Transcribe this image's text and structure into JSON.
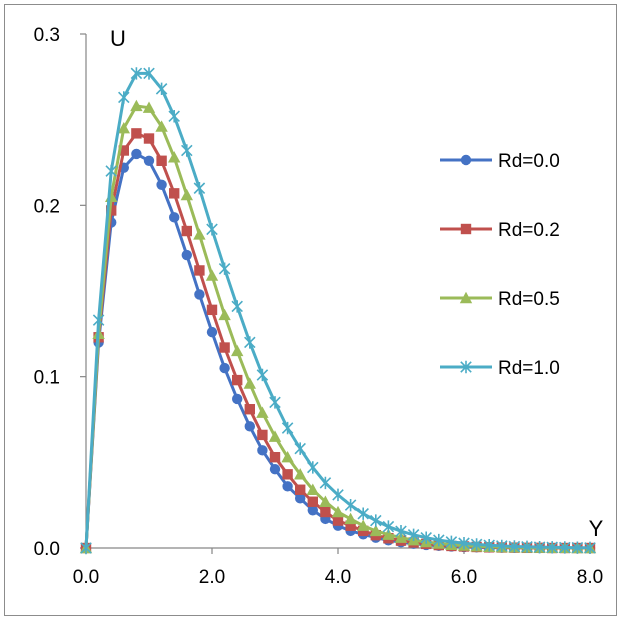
{
  "chart_data": {
    "type": "line",
    "title": "",
    "xlabel": "Y",
    "ylabel": "U",
    "xlim": [
      0,
      8
    ],
    "ylim": [
      0,
      0.3
    ],
    "xticks": [
      "0.0",
      "2.0",
      "4.0",
      "6.0",
      "8.0"
    ],
    "yticks": [
      "0.0",
      "0.1",
      "0.2",
      "0.3"
    ],
    "grid": false,
    "legend_position": "right",
    "x": [
      0,
      0.2,
      0.4,
      0.6,
      0.8,
      1.0,
      1.2,
      1.4,
      1.6,
      1.8,
      2.0,
      2.2,
      2.4,
      2.6,
      2.8,
      3.0,
      3.2,
      3.4,
      3.6,
      3.8,
      4.0,
      4.2,
      4.4,
      4.6,
      4.8,
      5.0,
      5.2,
      5.4,
      5.6,
      5.8,
      6.0,
      6.2,
      6.4,
      6.6,
      6.8,
      7.0,
      7.2,
      7.4,
      7.6,
      7.8,
      8.0
    ],
    "series": [
      {
        "name": "Rd=0.0",
        "color": "#4472C4",
        "marker": "circle",
        "values": [
          0,
          0.12,
          0.19,
          0.222,
          0.23,
          0.226,
          0.212,
          0.193,
          0.171,
          0.148,
          0.126,
          0.105,
          0.087,
          0.071,
          0.057,
          0.046,
          0.036,
          0.029,
          0.022,
          0.017,
          0.013,
          0.01,
          0.008,
          0.006,
          0.0045,
          0.0034,
          0.0025,
          0.0018,
          0.0013,
          0.0009,
          0.0006,
          0.0004,
          0.0003,
          0.0002,
          0.0001,
          0.0001,
          0,
          0,
          0,
          0,
          0
        ]
      },
      {
        "name": "Rd=0.2",
        "color": "#C0504D",
        "marker": "square",
        "values": [
          0,
          0.123,
          0.197,
          0.232,
          0.242,
          0.239,
          0.226,
          0.207,
          0.185,
          0.162,
          0.139,
          0.117,
          0.098,
          0.081,
          0.066,
          0.053,
          0.043,
          0.034,
          0.027,
          0.021,
          0.016,
          0.013,
          0.01,
          0.0075,
          0.0057,
          0.0043,
          0.0032,
          0.0024,
          0.0017,
          0.0012,
          0.0009,
          0.0006,
          0.0004,
          0.0003,
          0.0002,
          0.0001,
          0.0001,
          0,
          0,
          0,
          0
        ]
      },
      {
        "name": "Rd=0.5",
        "color": "#9BBB59",
        "marker": "triangle",
        "values": [
          0,
          0.125,
          0.205,
          0.245,
          0.258,
          0.257,
          0.246,
          0.228,
          0.206,
          0.183,
          0.159,
          0.136,
          0.115,
          0.096,
          0.079,
          0.065,
          0.053,
          0.043,
          0.034,
          0.027,
          0.021,
          0.017,
          0.013,
          0.01,
          0.0078,
          0.006,
          0.0046,
          0.0035,
          0.0026,
          0.0019,
          0.0014,
          0.001,
          0.0007,
          0.0005,
          0.0004,
          0.0003,
          0.0002,
          0.0001,
          0.0001,
          0,
          0
        ]
      },
      {
        "name": "Rd=1.0",
        "color": "#4BACC6",
        "marker": "star",
        "values": [
          0,
          0.133,
          0.22,
          0.263,
          0.277,
          0.277,
          0.268,
          0.252,
          0.232,
          0.21,
          0.186,
          0.163,
          0.141,
          0.12,
          0.101,
          0.085,
          0.07,
          0.058,
          0.047,
          0.038,
          0.031,
          0.025,
          0.02,
          0.016,
          0.0125,
          0.0098,
          0.0077,
          0.006,
          0.0046,
          0.0036,
          0.0028,
          0.0021,
          0.0016,
          0.0012,
          0.0009,
          0.0007,
          0.0005,
          0.0004,
          0.0003,
          0.0002,
          0.0001
        ]
      }
    ]
  }
}
